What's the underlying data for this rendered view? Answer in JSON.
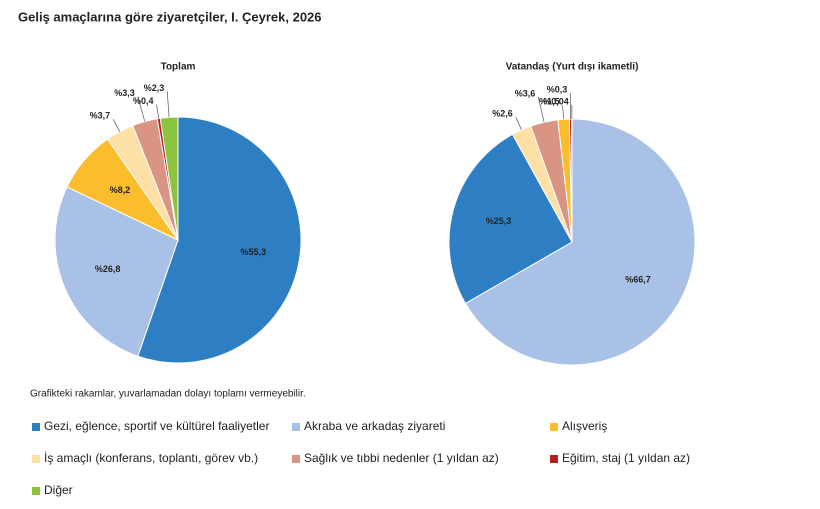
{
  "title": "Geliş amaçlarına göre ziyaretçiler, I. Çeyrek, 2026",
  "note": "Grafikteki rakamlar, yuvarlamadan dolayı toplamı vermeyebilir.",
  "chart_data": [
    {
      "type": "pie",
      "title": "Toplam",
      "categories": [
        "Gezi, eğlence, sportif ve kültürel faaliyetler",
        "Akraba ve arkadaş ziyareti",
        "Alışveriş",
        "İş amaçlı (konferans, toplantı, görev vb.)",
        "Sağlık ve tıbbi nedenler (1 yıldan az)",
        "Eğitim, staj (1 yıldan az)",
        "Diğer"
      ],
      "values": [
        55.3,
        26.8,
        8.2,
        3.7,
        3.3,
        0.4,
        2.3
      ],
      "value_labels": [
        "%55,3",
        "%26,8",
        "%8,2",
        "%3,7",
        "%3,3",
        "%0,4",
        "%2,3"
      ],
      "colors": [
        "#2e7ec4",
        "#a9c1e6",
        "#fbbd2b",
        "#fde0a5",
        "#d99483",
        "#b0201f",
        "#8cc43f"
      ]
    },
    {
      "type": "pie",
      "title": "Vatandaş (Yurt dışı ikametli)",
      "categories": [
        "Akraba ve arkadaş ziyareti",
        "Gezi, eğlence, sportif ve kültürel faaliyetler",
        "İş amaçlı (konferans, toplantı, görev vb.)",
        "Sağlık ve tıbbi nedenler (1 yıldan az)",
        "Alışveriş",
        "Eğitim, staj (1 yıldan az)",
        "Diğer"
      ],
      "values": [
        66.7,
        25.3,
        2.6,
        3.6,
        1.5,
        0.3,
        0.04
      ],
      "value_labels": [
        "%66,7",
        "%25,3",
        "%2,6",
        "%3,6",
        "%1,5",
        "%0,3",
        "%0,04"
      ],
      "colors": [
        "#a9c1e6",
        "#2e7ec4",
        "#fde0a5",
        "#d99483",
        "#fbbd2b",
        "#b0201f",
        "#8cc43f"
      ]
    }
  ]
}
